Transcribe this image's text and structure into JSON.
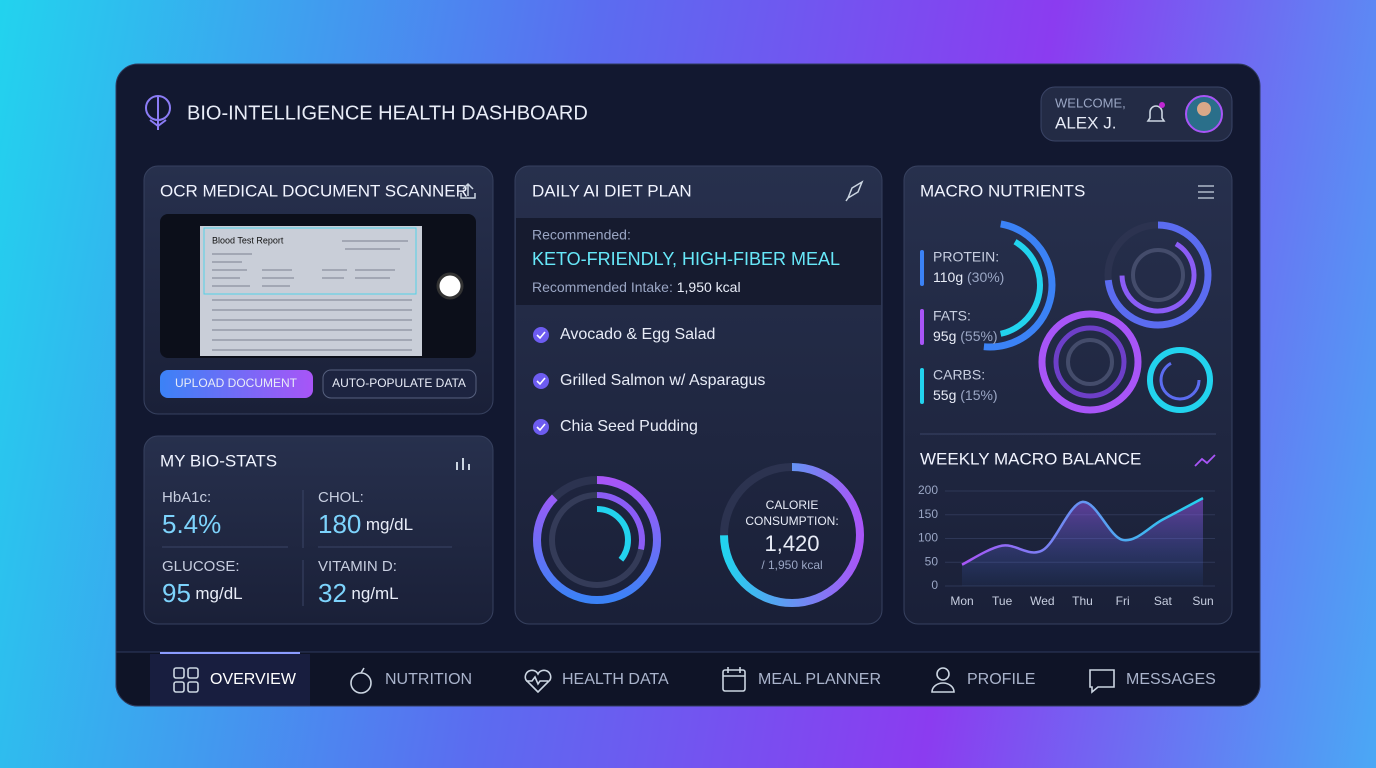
{
  "header": {
    "title": "BIO-INTELLIGENCE HEALTH DASHBOARD",
    "welcome": "WELCOME,",
    "user": "ALEX J."
  },
  "scanner": {
    "title": "OCR MEDICAL DOCUMENT SCANNER",
    "doc_title": "Blood Test Report",
    "buttons": [
      "UPLOAD DOCUMENT",
      "AUTO-POPULATE DATA"
    ]
  },
  "bio_stats": {
    "title": "MY BIO-STATS",
    "items": [
      {
        "label": "HbA1c:",
        "value": "5.4%"
      },
      {
        "label": "CHOL:",
        "value": "180",
        "unit": "mg/dL"
      },
      {
        "label": "GLUCOSE:",
        "value": "95",
        "unit": "mg/dL"
      },
      {
        "label": "VITAMIN D:",
        "value": "32",
        "unit": "ng/mL"
      }
    ]
  },
  "diet": {
    "title": "DAILY AI DIET PLAN",
    "recommended_label": "Recommended:",
    "meal": "KETO-FRIENDLY, HIGH-FIBER MEAL",
    "intake_label": "Recommended Intake:",
    "intake": "1,950 kcal",
    "items": [
      "Avocado & Egg Salad",
      "Grilled Salmon w/ Asparagus",
      "Chia Seed Pudding"
    ],
    "calorie_label": [
      "CALORIE",
      "CONSUMPTION:"
    ],
    "calorie_value": "1,420",
    "calorie_target": "/ 1,950 kcal"
  },
  "macros": {
    "title": "MACRO NUTRIENTS",
    "items": [
      {
        "name": "PROTEIN:",
        "amount": "110g",
        "share": "(30%)"
      },
      {
        "name": "FATS:",
        "amount": "95g",
        "share": "(55%)"
      },
      {
        "name": "CARBS:",
        "amount": "55g",
        "share": "(15%)"
      }
    ]
  },
  "weekly": {
    "type": "line",
    "title": "WEEKLY MACRO BALANCE",
    "categories": [
      "Mon",
      "Tue",
      "Wed",
      "Thu",
      "Fri",
      "Sat",
      "Sun"
    ],
    "values": [
      45,
      85,
      75,
      177,
      97,
      140,
      185
    ],
    "ylim": [
      0,
      200
    ],
    "yticks": [
      0,
      50,
      100,
      150,
      200
    ],
    "color": "#a855f7"
  },
  "nav": [
    "OVERVIEW",
    "NUTRITION",
    "HEALTH DATA",
    "MEAL PLANNER",
    "PROFILE",
    "MESSAGES"
  ]
}
